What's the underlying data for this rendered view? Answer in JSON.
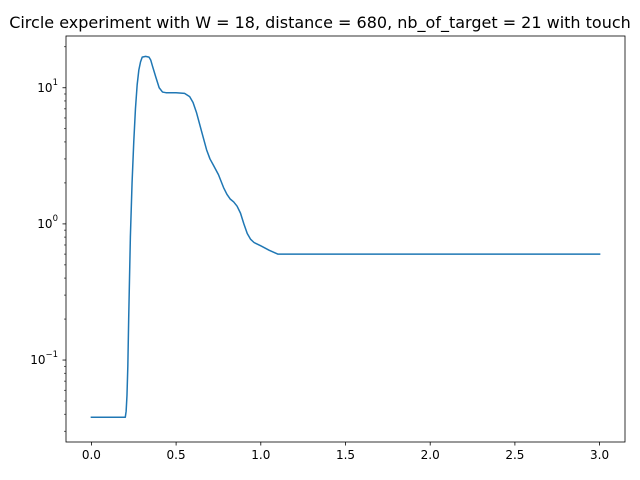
{
  "chart_data": {
    "type": "line",
    "title": "Circle experiment with W = 18, distance = 680, nb_of_target = 21 with touch",
    "xlabel": "",
    "ylabel": "",
    "xlim": [
      -0.15,
      3.15
    ],
    "ylim": [
      0.025,
      24
    ],
    "yscale": "log",
    "grid": false,
    "x_ticks": [
      0.0,
      0.5,
      1.0,
      1.5,
      2.0,
      2.5,
      3.0
    ],
    "x_tick_labels": [
      "0.0",
      "0.5",
      "1.0",
      "1.5",
      "2.0",
      "2.5",
      "3.0"
    ],
    "y_ticks": [
      0.1,
      1,
      10
    ],
    "y_tick_labels": [
      "10^-1",
      "10^0",
      "10^1"
    ],
    "series": [
      {
        "color": "#1f77b4",
        "x": [
          0.0,
          0.1,
          0.2,
          0.205,
          0.21,
          0.215,
          0.22,
          0.225,
          0.23,
          0.24,
          0.25,
          0.26,
          0.27,
          0.28,
          0.29,
          0.3,
          0.32,
          0.34,
          0.35,
          0.36,
          0.38,
          0.4,
          0.42,
          0.44,
          0.46,
          0.5,
          0.55,
          0.58,
          0.6,
          0.62,
          0.65,
          0.68,
          0.7,
          0.72,
          0.75,
          0.78,
          0.8,
          0.82,
          0.84,
          0.86,
          0.88,
          0.9,
          0.92,
          0.94,
          0.96,
          0.98,
          1.0,
          1.05,
          1.1,
          1.2,
          1.5,
          2.0,
          2.5,
          3.0
        ],
        "y": [
          0.038,
          0.038,
          0.038,
          0.042,
          0.055,
          0.09,
          0.2,
          0.4,
          0.8,
          2.0,
          4.0,
          7.0,
          10.5,
          13.5,
          15.5,
          16.8,
          17.0,
          16.8,
          16.0,
          14.5,
          12.0,
          10.0,
          9.3,
          9.2,
          9.2,
          9.2,
          9.1,
          8.6,
          7.8,
          6.6,
          4.8,
          3.5,
          3.0,
          2.7,
          2.3,
          1.85,
          1.65,
          1.52,
          1.45,
          1.35,
          1.2,
          1.0,
          0.85,
          0.77,
          0.73,
          0.71,
          0.69,
          0.64,
          0.6,
          0.6,
          0.6,
          0.6,
          0.6,
          0.6
        ]
      }
    ]
  }
}
